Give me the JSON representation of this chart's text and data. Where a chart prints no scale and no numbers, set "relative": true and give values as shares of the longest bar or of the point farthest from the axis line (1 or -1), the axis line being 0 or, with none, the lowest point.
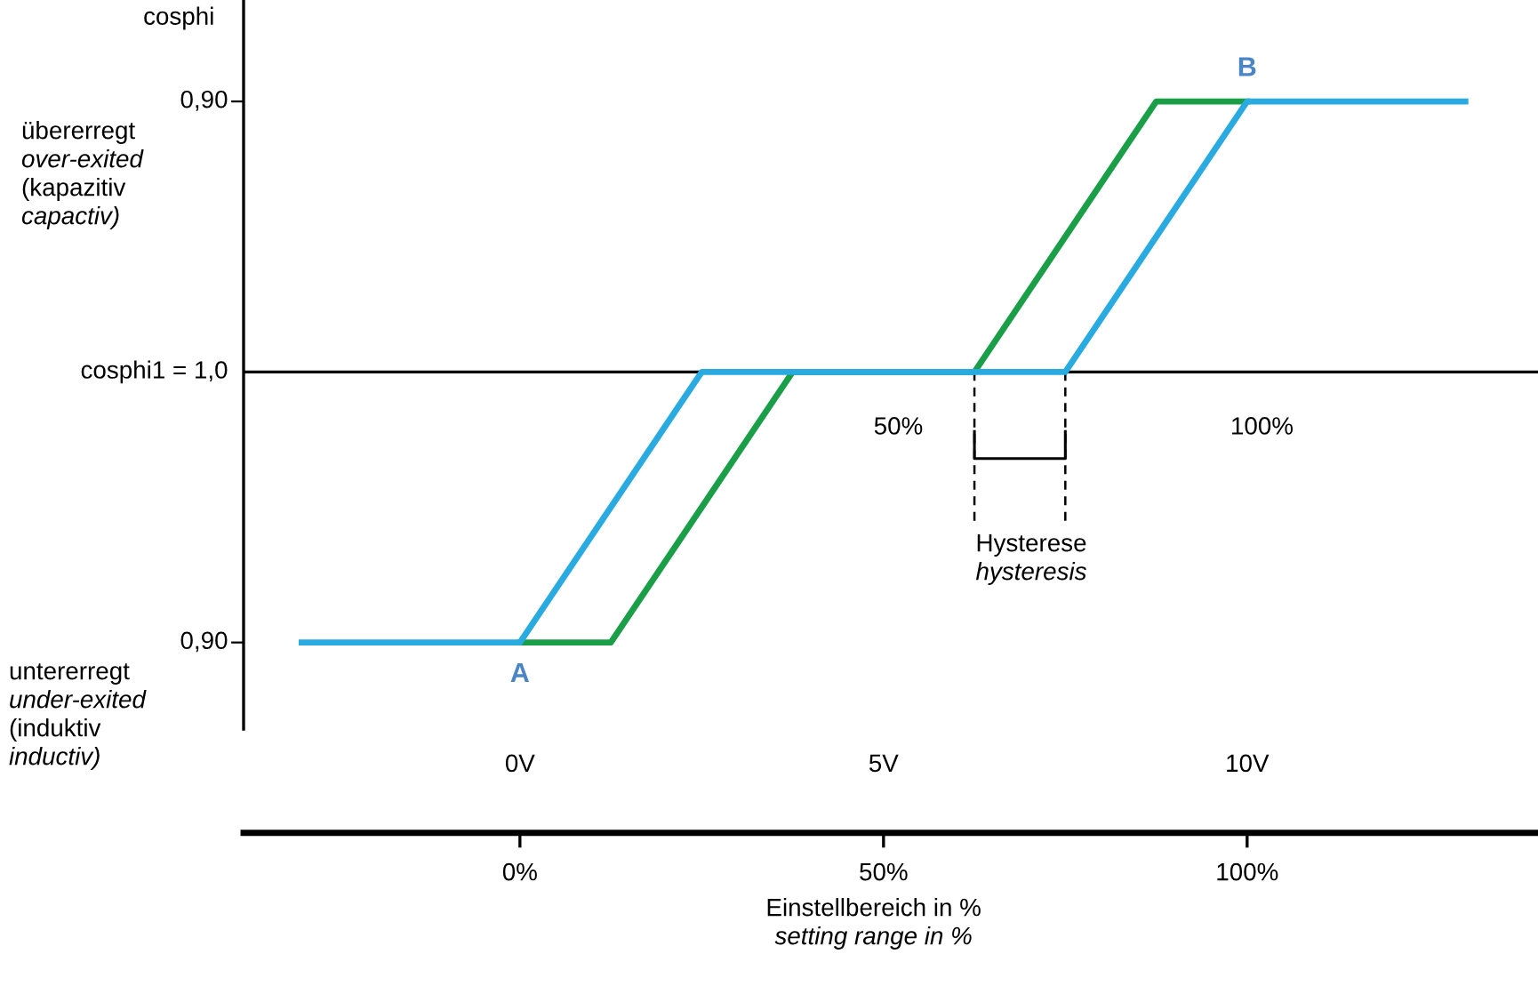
{
  "chart_data": {
    "type": "line",
    "ylabel": "cosphi",
    "xlabel": "Einstellbereich in %\nsetting range in %",
    "xlim": [
      -38,
      140
    ],
    "xticks": [
      {
        "value": 0,
        "label": "0%"
      },
      {
        "value": 50,
        "label": "50%"
      },
      {
        "value": 100,
        "label": "100%"
      }
    ],
    "x2lim": [
      -3.8,
      14.0
    ],
    "x2ticks": [
      {
        "value": 0,
        "label": "0V"
      },
      {
        "value": 5,
        "label": "5V"
      },
      {
        "value": 10,
        "label": "10V"
      }
    ],
    "relative": true,
    "grid": false,
    "legend": false,
    "marker": "none",
    "line_style": "solid",
    "series": [
      {
        "color": "#1a9e48",
        "x": [
          0,
          12.5,
          37.5,
          62.5,
          87.5,
          100
        ],
        "values": [
          -1,
          -1,
          0,
          0,
          1,
          1
        ]
      },
      {
        "color": "#29abe2",
        "x": [
          -30,
          0,
          25,
          75,
          100,
          130
        ],
        "values": [
          -1,
          -1,
          0,
          0,
          1,
          1
        ]
      }
    ],
    "ref_lines": [
      {
        "axis": "y",
        "value": 0,
        "color": "#000000",
        "line_style": "solid"
      },
      {
        "axis": "x",
        "value": 62.5,
        "color": "#000000",
        "line_style": "dashed"
      },
      {
        "axis": "x",
        "value": 75,
        "color": "#000000",
        "line_style": "dashed"
      }
    ],
    "annotations": [
      "0,90",
      "übererregt\nover-exited\n(kapazitiv\ncapactiv)",
      "cosphi1 = 1,0",
      "0,90",
      "untererregt\nunder-exited\n(induktiv\ninductiv)",
      "Hysterese\nhysteresis",
      {
        "text": "A",
        "x": 0,
        "y": -1
      },
      {
        "text": "B",
        "x": 100,
        "y": 1
      },
      {
        "text": "50%",
        "x": 50,
        "y": 0
      },
      {
        "text": "100%",
        "x": 100,
        "y": 0
      }
    ]
  }
}
